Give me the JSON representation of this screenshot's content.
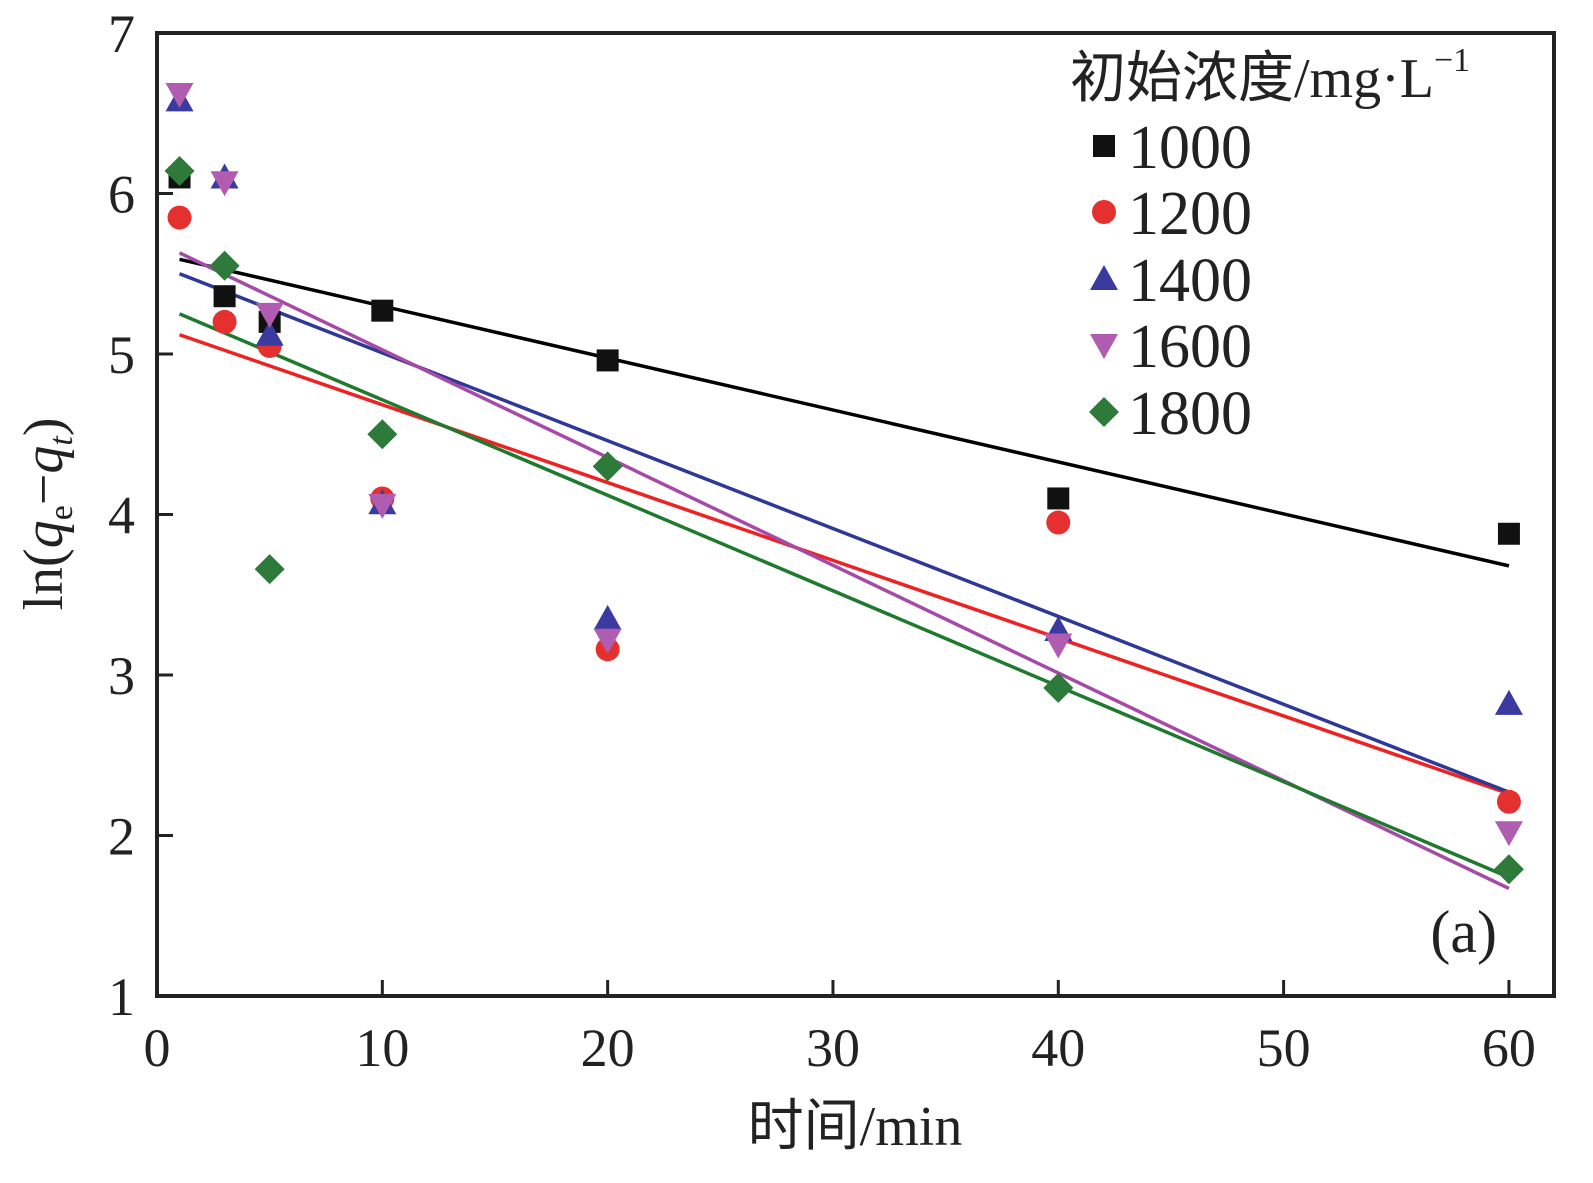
{
  "chart_data": {
    "type": "scatter",
    "xlabel": "时间/min",
    "ylabel": "ln(qe−qt)",
    "xlim": [
      0,
      62
    ],
    "ylim": [
      1,
      7
    ],
    "x_ticks": [
      "0",
      "10",
      "20",
      "30",
      "40",
      "50",
      "60"
    ],
    "y_ticks": [
      "1",
      "2",
      "3",
      "4",
      "5",
      "6",
      "7"
    ],
    "legend_title": "初始浓度/mg·L",
    "legend_title_sup": "−1",
    "legend_position": "top-right",
    "panel_label": "(a)",
    "grid": false,
    "series": [
      {
        "name": "1000",
        "marker": "square",
        "color": "#111111",
        "line_color": "#000000",
        "x": [
          1,
          3,
          5,
          10,
          20,
          40,
          60
        ],
        "y": [
          6.1,
          5.36,
          5.2,
          5.27,
          4.96,
          4.1,
          3.88
        ],
        "fit": [
          [
            1,
            5.59
          ],
          [
            60,
            3.68
          ]
        ]
      },
      {
        "name": "1200",
        "marker": "circle",
        "color": "#e53030",
        "line_color": "#ee2222",
        "x": [
          1,
          3,
          5,
          10,
          20,
          40,
          60
        ],
        "y": [
          5.85,
          5.2,
          5.05,
          4.1,
          3.16,
          3.95,
          2.21
        ],
        "fit": [
          [
            1,
            5.12
          ],
          [
            60,
            2.26
          ]
        ]
      },
      {
        "name": "1400",
        "marker": "triangle-up",
        "color": "#3a3aa0",
        "line_color": "#2e3899",
        "x": [
          1,
          3,
          5,
          10,
          20,
          40,
          60
        ],
        "y": [
          6.58,
          6.1,
          5.12,
          4.07,
          3.35,
          3.28,
          2.82
        ],
        "fit": [
          [
            1,
            5.5
          ],
          [
            60,
            2.27
          ]
        ]
      },
      {
        "name": "1600",
        "marker": "triangle-down",
        "color": "#b05cb0",
        "line_color": "#a74aa7",
        "x": [
          1,
          3,
          5,
          10,
          20,
          40,
          60
        ],
        "y": [
          6.62,
          6.07,
          5.25,
          4.06,
          3.22,
          3.19,
          2.02
        ],
        "fit": [
          [
            1,
            5.63
          ],
          [
            60,
            1.67
          ]
        ]
      },
      {
        "name": "1800",
        "marker": "diamond",
        "color": "#2d7a3a",
        "line_color": "#1f7a2d",
        "x": [
          1,
          3,
          5,
          10,
          20,
          40,
          60
        ],
        "y": [
          6.14,
          5.55,
          3.66,
          4.5,
          4.3,
          2.92,
          1.79
        ],
        "fit": [
          [
            1,
            5.25
          ],
          [
            60,
            1.74
          ]
        ]
      }
    ]
  }
}
